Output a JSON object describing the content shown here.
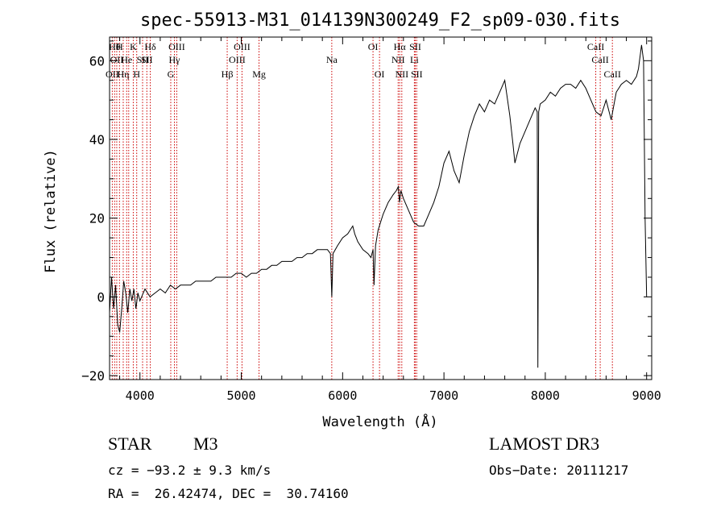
{
  "chart_data": {
    "type": "line",
    "title": "spec-55913-M31_014139N300249_F2_sp09-030.fits",
    "xlabel": "Wavelength (Å)",
    "ylabel": "Flux (relative)",
    "xlim": [
      3700,
      9050
    ],
    "ylim": [
      -21,
      66
    ],
    "xticks": [
      4000,
      5000,
      6000,
      7000,
      8000,
      9000
    ],
    "yticks": [
      -20,
      0,
      20,
      40,
      60
    ],
    "xtick_labels": [
      "4000",
      "5000",
      "6000",
      "7000",
      "8000",
      "9000"
    ],
    "ytick_labels": [
      "−20",
      "0",
      "20",
      "40",
      "60"
    ],
    "series": [
      {
        "name": "spectrum",
        "color": "#000000",
        "points": [
          [
            3700,
            -4
          ],
          [
            3720,
            5
          ],
          [
            3740,
            -3
          ],
          [
            3760,
            3
          ],
          [
            3780,
            -7
          ],
          [
            3800,
            -9
          ],
          [
            3820,
            -3
          ],
          [
            3840,
            4
          ],
          [
            3860,
            1
          ],
          [
            3880,
            -4
          ],
          [
            3900,
            2
          ],
          [
            3920,
            -1
          ],
          [
            3940,
            2
          ],
          [
            3960,
            -3
          ],
          [
            3980,
            1
          ],
          [
            4000,
            -1
          ],
          [
            4050,
            2
          ],
          [
            4100,
            0
          ],
          [
            4150,
            1
          ],
          [
            4200,
            2
          ],
          [
            4250,
            1
          ],
          [
            4300,
            3
          ],
          [
            4350,
            2
          ],
          [
            4400,
            3
          ],
          [
            4450,
            3
          ],
          [
            4500,
            3
          ],
          [
            4550,
            4
          ],
          [
            4600,
            4
          ],
          [
            4650,
            4
          ],
          [
            4700,
            4
          ],
          [
            4750,
            5
          ],
          [
            4800,
            5
          ],
          [
            4850,
            5
          ],
          [
            4900,
            5
          ],
          [
            4950,
            6
          ],
          [
            5000,
            6
          ],
          [
            5050,
            5
          ],
          [
            5100,
            6
          ],
          [
            5150,
            6
          ],
          [
            5200,
            7
          ],
          [
            5250,
            7
          ],
          [
            5300,
            8
          ],
          [
            5350,
            8
          ],
          [
            5400,
            9
          ],
          [
            5450,
            9
          ],
          [
            5500,
            9
          ],
          [
            5550,
            10
          ],
          [
            5600,
            10
          ],
          [
            5650,
            11
          ],
          [
            5700,
            11
          ],
          [
            5750,
            12
          ],
          [
            5800,
            12
          ],
          [
            5850,
            12
          ],
          [
            5880,
            11
          ],
          [
            5893,
            0
          ],
          [
            5905,
            11
          ],
          [
            5950,
            13
          ],
          [
            6000,
            15
          ],
          [
            6050,
            16
          ],
          [
            6100,
            18
          ],
          [
            6120,
            16
          ],
          [
            6150,
            14
          ],
          [
            6200,
            12
          ],
          [
            6250,
            11
          ],
          [
            6280,
            10
          ],
          [
            6300,
            12
          ],
          [
            6310,
            3
          ],
          [
            6325,
            13
          ],
          [
            6350,
            17
          ],
          [
            6400,
            21
          ],
          [
            6450,
            24
          ],
          [
            6500,
            26
          ],
          [
            6530,
            27
          ],
          [
            6550,
            28
          ],
          [
            6562,
            24
          ],
          [
            6575,
            27
          ],
          [
            6600,
            25
          ],
          [
            6650,
            22
          ],
          [
            6700,
            19
          ],
          [
            6750,
            18
          ],
          [
            6800,
            18
          ],
          [
            6850,
            21
          ],
          [
            6900,
            24
          ],
          [
            6950,
            28
          ],
          [
            7000,
            34
          ],
          [
            7050,
            37
          ],
          [
            7100,
            32
          ],
          [
            7150,
            29
          ],
          [
            7200,
            36
          ],
          [
            7250,
            42
          ],
          [
            7300,
            46
          ],
          [
            7350,
            49
          ],
          [
            7400,
            47
          ],
          [
            7450,
            50
          ],
          [
            7500,
            49
          ],
          [
            7550,
            52
          ],
          [
            7600,
            55
          ],
          [
            7650,
            46
          ],
          [
            7680,
            39
          ],
          [
            7700,
            34
          ],
          [
            7750,
            39
          ],
          [
            7800,
            42
          ],
          [
            7850,
            45
          ],
          [
            7900,
            48
          ],
          [
            7920,
            47
          ],
          [
            7927,
            -18
          ],
          [
            7935,
            47
          ],
          [
            7950,
            49
          ],
          [
            8000,
            50
          ],
          [
            8050,
            52
          ],
          [
            8100,
            51
          ],
          [
            8150,
            53
          ],
          [
            8200,
            54
          ],
          [
            8250,
            54
          ],
          [
            8300,
            53
          ],
          [
            8350,
            55
          ],
          [
            8400,
            53
          ],
          [
            8450,
            50
          ],
          [
            8500,
            47
          ],
          [
            8550,
            46
          ],
          [
            8600,
            50
          ],
          [
            8650,
            45
          ],
          [
            8700,
            52
          ],
          [
            8750,
            54
          ],
          [
            8800,
            55
          ],
          [
            8850,
            54
          ],
          [
            8900,
            56
          ],
          [
            8920,
            58
          ],
          [
            8950,
            64
          ],
          [
            8970,
            60
          ],
          [
            8985,
            20
          ],
          [
            9000,
            0
          ]
        ]
      }
    ],
    "line_markers": [
      {
        "wavelength": 3727,
        "label": "OII",
        "row": 2
      },
      {
        "wavelength": 3750,
        "label": "Hθ",
        "row": 0
      },
      {
        "wavelength": 3771,
        "label": "OII",
        "row": 1
      },
      {
        "wavelength": 3798,
        "label": "H",
        "row": 0
      },
      {
        "wavelength": 3835,
        "label": "Hη",
        "row": 2
      },
      {
        "wavelength": 3869,
        "label": "He",
        "row": 1
      },
      {
        "wavelength": 3889,
        "label": "",
        "row": 0
      },
      {
        "wavelength": 3934,
        "label": "K",
        "row": 0
      },
      {
        "wavelength": 3968,
        "label": "H",
        "row": 2
      },
      {
        "wavelength": 4026,
        "label": "SII",
        "row": 1
      },
      {
        "wavelength": 4068,
        "label": "SII",
        "row": 1
      },
      {
        "wavelength": 4102,
        "label": "Hδ",
        "row": 0
      },
      {
        "wavelength": 4304,
        "label": "G",
        "row": 2
      },
      {
        "wavelength": 4340,
        "label": "Hγ",
        "row": 1
      },
      {
        "wavelength": 4363,
        "label": "OIII",
        "row": 0
      },
      {
        "wavelength": 4861,
        "label": "Hβ",
        "row": 2
      },
      {
        "wavelength": 4959,
        "label": "OIII",
        "row": 1
      },
      {
        "wavelength": 5007,
        "label": "OIII",
        "row": 0
      },
      {
        "wavelength": 5175,
        "label": "Mg",
        "row": 2
      },
      {
        "wavelength": 5893,
        "label": "Na",
        "row": 1
      },
      {
        "wavelength": 6300,
        "label": "OI",
        "row": 0
      },
      {
        "wavelength": 6364,
        "label": "OI",
        "row": 2
      },
      {
        "wavelength": 6548,
        "label": "NII",
        "row": 1
      },
      {
        "wavelength": 6563,
        "label": "Hα",
        "row": 0
      },
      {
        "wavelength": 6584,
        "label": "NII",
        "row": 2
      },
      {
        "wavelength": 6708,
        "label": "Li",
        "row": 1
      },
      {
        "wavelength": 6717,
        "label": "SII",
        "row": 0
      },
      {
        "wavelength": 6731,
        "label": "SII",
        "row": 2
      },
      {
        "wavelength": 8498,
        "label": "CaII",
        "row": 0
      },
      {
        "wavelength": 8542,
        "label": "CaII",
        "row": 1
      },
      {
        "wavelength": 8662,
        "label": "CaII",
        "row": 2
      }
    ],
    "marker_color": "#cc0000"
  },
  "info": {
    "object_class": "STAR",
    "subclass": "M3",
    "survey": "LAMOST DR3",
    "cz": "cz = −93.2 ± 9.3 km/s",
    "obs_date": "Obs−Date: 20111217",
    "coords": "RA =  26.42474, DEC =  30.74160"
  }
}
